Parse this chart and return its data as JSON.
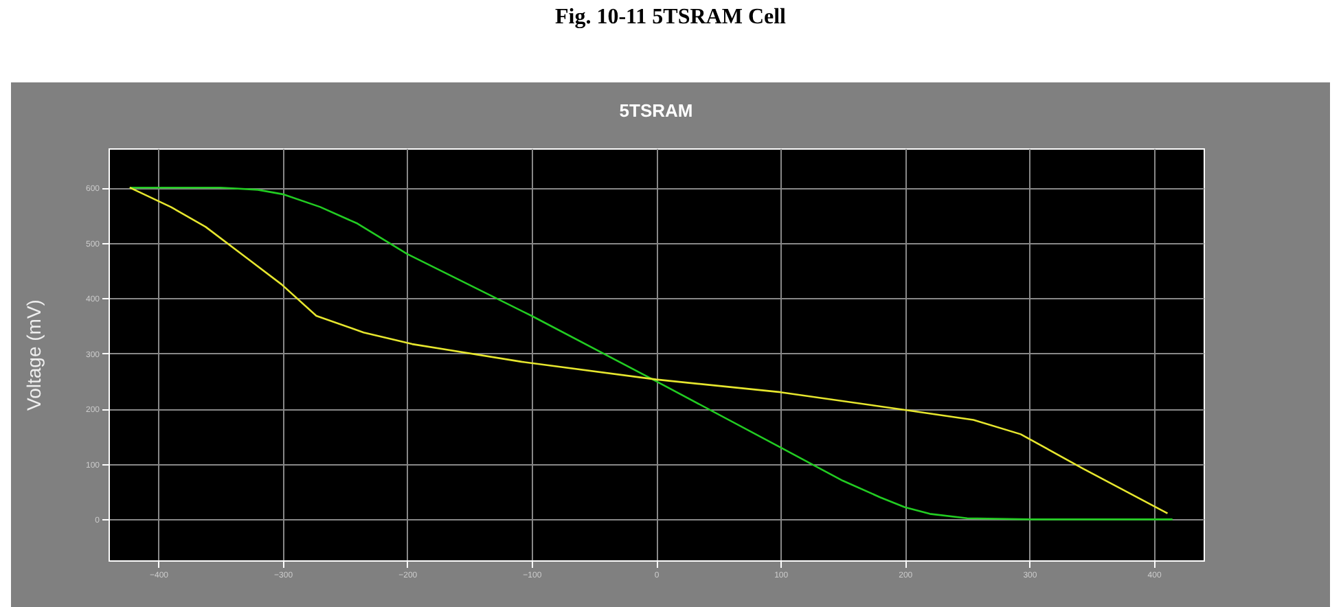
{
  "chart_data": {
    "type": "line",
    "title": "5TSRAM",
    "ylabel": "Voltage (mV)",
    "annotations": [
      "Fig. 10-11 5TSRAM Cell"
    ],
    "xlim": [
      -440,
      440
    ],
    "xticks": [
      -400,
      -300,
      -200,
      -100,
      0,
      100,
      200,
      300,
      400
    ],
    "ylim": [
      -74,
      671
    ],
    "yticks": [
      0,
      100,
      200,
      300,
      400,
      500,
      600
    ],
    "grid": true,
    "legend": false,
    "series": [
      {
        "color": "#22cc22",
        "x": [
          -423,
          -350,
          -320,
          -300,
          -270,
          -240,
          -200,
          -100,
          0,
          100,
          150,
          180,
          200,
          220,
          250,
          300,
          415
        ],
        "values": [
          600,
          600,
          596,
          588,
          565,
          535,
          480,
          368,
          250,
          130,
          70,
          40,
          22,
          10,
          2,
          0,
          0
        ]
      },
      {
        "color": "#e6e62e",
        "x": [
          -423,
          -390,
          -362,
          -328,
          -301,
          -273,
          -235,
          -196,
          -108,
          0,
          100,
          200,
          255,
          293,
          343,
          411
        ],
        "values": [
          600,
          565,
          529,
          471,
          425,
          368,
          338,
          317,
          285,
          253,
          230,
          198,
          180,
          154,
          92,
          11
        ]
      }
    ]
  }
}
